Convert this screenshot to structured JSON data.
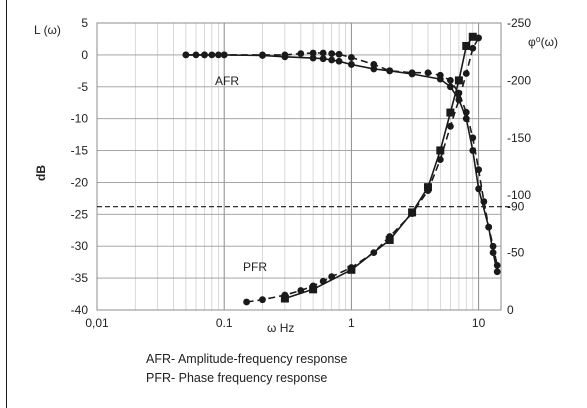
{
  "chart_data": {
    "type": "line",
    "y_left_title": "L (ω)",
    "y_left_axis_label": "dB",
    "y_right_title": "φ⁰(ω)",
    "x_label": "ω Hz",
    "x_scale": "log",
    "xlim": [
      0.01,
      15
    ],
    "ylim_left": [
      -40,
      5
    ],
    "ylim_right_values": [
      0,
      250
    ],
    "ylim_right_display": [
      0,
      -250
    ],
    "x_ticks": [
      "0,01",
      "0.1",
      "1",
      "10"
    ],
    "y_left_ticks": [
      "5",
      "0",
      "-5",
      "-10",
      "-15",
      "-20",
      "-25",
      "-30",
      "-35",
      "-40"
    ],
    "y_right_ticks": [
      "-250",
      "-200",
      "-150",
      "-100",
      "-90",
      "-50",
      "0"
    ],
    "reference_line": {
      "axis": "right",
      "value": -90,
      "style": "dashed"
    },
    "grid": "both-minor-vertical",
    "annotations": [
      {
        "text": "AFR",
        "x": 0.2,
        "y": -3.7
      },
      {
        "text": "PFR",
        "x": 0.16,
        "y": -33.2
      }
    ],
    "series": [
      {
        "name": "AFR",
        "axis": "left",
        "style": "solid",
        "marker": "circle",
        "x": [
          0.05,
          0.06,
          0.07,
          0.08,
          0.09,
          0.1,
          0.2,
          0.3,
          0.5,
          0.6,
          0.7,
          0.8,
          1,
          1.5,
          2,
          3,
          5,
          6,
          7,
          8,
          9,
          10,
          12,
          13,
          14
        ],
        "y": [
          0,
          0,
          0,
          0,
          0,
          0,
          -0.1,
          -0.3,
          -0.5,
          -0.6,
          -0.8,
          -1,
          -1.5,
          -2.2,
          -2.5,
          -3,
          -3.8,
          -5,
          -7,
          -10,
          -15,
          -21,
          -27,
          -31,
          -34
        ]
      },
      {
        "name": "AFR",
        "axis": "left",
        "style": "dashed",
        "marker": "circle",
        "x": [
          0.05,
          0.07,
          0.1,
          0.2,
          0.3,
          0.4,
          0.5,
          0.6,
          0.7,
          0.8,
          1,
          1.5,
          2,
          3,
          4,
          5,
          6,
          7,
          8,
          9,
          10,
          11,
          12,
          13,
          14
        ],
        "y": [
          0,
          0,
          0,
          0,
          0,
          0.2,
          0.3,
          0.3,
          0.2,
          0.1,
          -0.4,
          -1.5,
          -2.5,
          -2.8,
          -2.8,
          -3.2,
          -4,
          -6,
          -9,
          -13,
          -18,
          -23,
          -27,
          -30,
          -33
        ]
      },
      {
        "name": "PFR",
        "axis": "right",
        "style": "solid",
        "marker": "square",
        "x": [
          0.3,
          0.5,
          1,
          2,
          3,
          4,
          5,
          6,
          7,
          8,
          9
        ],
        "y": [
          -10,
          -18,
          -35,
          -61,
          -85,
          -107,
          -139,
          -172,
          -200,
          -230,
          -238
        ]
      },
      {
        "name": "PFR",
        "axis": "right",
        "style": "dashed",
        "marker": "circle",
        "x": [
          0.15,
          0.2,
          0.3,
          0.4,
          0.5,
          0.6,
          0.7,
          1,
          1.5,
          2,
          3,
          4,
          5,
          6,
          7,
          8,
          9,
          10
        ],
        "y": [
          -7,
          -9,
          -13,
          -17,
          -21,
          -25,
          -29,
          -37,
          -50,
          -64,
          -84,
          -104,
          -131,
          -160,
          -183,
          -206,
          -228,
          -237
        ]
      }
    ]
  },
  "legend_lines": [
    "AFR- Amplitude-frequency response",
    "PFR- Phase frequency response"
  ],
  "colors": {
    "line": "#1a1a1a",
    "grid": "#c8c8c8",
    "text": "#222222"
  }
}
